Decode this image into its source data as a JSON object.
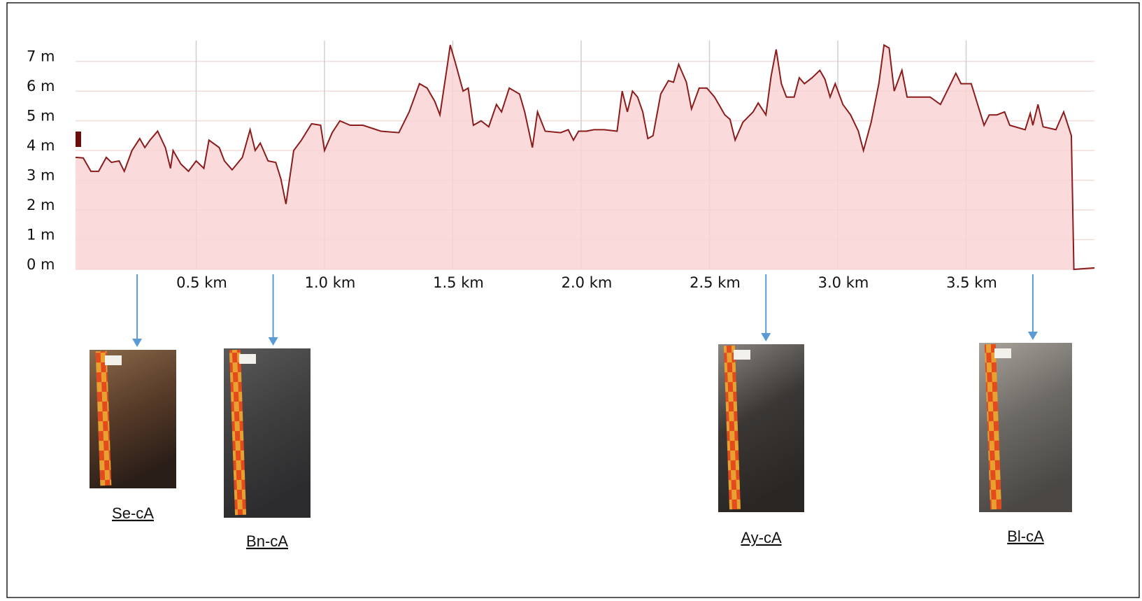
{
  "chart_data": {
    "type": "area",
    "x": [
      0.03,
      0.06,
      0.09,
      0.12,
      0.15,
      0.17,
      0.2,
      0.22,
      0.25,
      0.28,
      0.3,
      0.32,
      0.35,
      0.38,
      0.4,
      0.41,
      0.44,
      0.47,
      0.5,
      0.53,
      0.55,
      0.59,
      0.61,
      0.64,
      0.68,
      0.71,
      0.73,
      0.75,
      0.78,
      0.81,
      0.83,
      0.85,
      0.88,
      0.91,
      0.95,
      0.985,
      1.0,
      1.03,
      1.06,
      1.1,
      1.15,
      1.22,
      1.29,
      1.33,
      1.37,
      1.4,
      1.43,
      1.45,
      1.48,
      1.49,
      1.51,
      1.54,
      1.56,
      1.58,
      1.61,
      1.64,
      1.67,
      1.69,
      1.72,
      1.76,
      1.78,
      1.81,
      1.83,
      1.86,
      1.92,
      1.95,
      1.97,
      1.99,
      2.02,
      2.05,
      2.09,
      2.14,
      2.16,
      2.18,
      2.2,
      2.22,
      2.24,
      2.26,
      2.28,
      2.31,
      2.34,
      2.36,
      2.38,
      2.41,
      2.43,
      2.46,
      2.49,
      2.52,
      2.56,
      2.58,
      2.6,
      2.63,
      2.67,
      2.69,
      2.72,
      2.74,
      2.76,
      2.78,
      2.8,
      2.83,
      2.85,
      2.87,
      2.9,
      2.93,
      2.95,
      2.97,
      2.99,
      3.02,
      3.05,
      3.08,
      3.1,
      3.13,
      3.16,
      3.18,
      3.2,
      3.22,
      3.25,
      3.27,
      3.31,
      3.36,
      3.4,
      3.44,
      3.46,
      3.48,
      3.52,
      3.57,
      3.59,
      3.62,
      3.65,
      3.67,
      3.73,
      3.75,
      3.76,
      3.78,
      3.8,
      3.85,
      3.88,
      3.91,
      3.92,
      4.0
    ],
    "values": [
      3.77,
      3.75,
      3.3,
      3.3,
      3.77,
      3.6,
      3.65,
      3.3,
      4.0,
      4.4,
      4.1,
      4.35,
      4.65,
      4.1,
      3.4,
      4.0,
      3.55,
      3.3,
      3.65,
      3.4,
      4.35,
      4.1,
      3.65,
      3.35,
      3.77,
      4.7,
      4.0,
      4.25,
      3.65,
      3.6,
      3.05,
      2.2,
      4.0,
      4.35,
      4.9,
      4.85,
      4.0,
      4.6,
      5.0,
      4.85,
      4.85,
      4.65,
      4.6,
      5.3,
      6.25,
      6.1,
      5.65,
      5.2,
      6.95,
      7.55,
      6.95,
      6.0,
      6.1,
      4.85,
      5.0,
      4.8,
      5.55,
      5.3,
      6.1,
      5.9,
      5.3,
      4.1,
      5.3,
      4.65,
      4.6,
      4.7,
      4.35,
      4.65,
      4.65,
      4.7,
      4.7,
      4.65,
      6.0,
      5.3,
      6.0,
      5.8,
      5.3,
      4.4,
      4.5,
      5.9,
      6.35,
      6.3,
      6.9,
      6.3,
      5.4,
      6.1,
      6.1,
      5.8,
      5.2,
      5.05,
      4.35,
      4.95,
      5.3,
      5.6,
      5.2,
      6.5,
      7.4,
      6.25,
      5.8,
      5.8,
      6.45,
      6.25,
      6.45,
      6.7,
      6.4,
      5.8,
      6.25,
      5.55,
      5.2,
      4.65,
      4.0,
      4.95,
      6.25,
      7.55,
      7.45,
      6.0,
      6.7,
      5.8,
      5.8,
      5.8,
      5.55,
      6.25,
      6.6,
      6.25,
      6.25,
      4.85,
      5.2,
      5.2,
      5.3,
      4.85,
      4.7,
      5.25,
      4.85,
      5.55,
      4.8,
      4.7,
      5.3,
      4.5,
      0,
      0.05
    ],
    "color": "#8b1c1c",
    "fill": "#f9d4d4",
    "xlim": [
      0.03,
      4.0
    ],
    "ylim": [
      0,
      7.7
    ],
    "xticks": [
      {
        "value": 0.5,
        "label": "0.5 km"
      },
      {
        "value": 1.0,
        "label": "1.0 km"
      },
      {
        "value": 1.5,
        "label": "1.5 km"
      },
      {
        "value": 2.0,
        "label": "2.0 km"
      },
      {
        "value": 2.5,
        "label": "2.5 km"
      },
      {
        "value": 3.0,
        "label": "3.0 km"
      },
      {
        "value": 3.5,
        "label": "3.5 km"
      }
    ],
    "yticks": [
      {
        "value": 0,
        "label": "0 m"
      },
      {
        "value": 1,
        "label": "1 m"
      },
      {
        "value": 2,
        "label": "2 m"
      },
      {
        "value": 3,
        "label": "3 m"
      },
      {
        "value": 4,
        "label": "4 m"
      },
      {
        "value": 5,
        "label": "5 m"
      },
      {
        "value": 6,
        "label": "6 m"
      },
      {
        "value": 7,
        "label": "7 m"
      }
    ],
    "grid": true,
    "annotations": [
      {
        "label": "Se-cA",
        "x": 0.27
      },
      {
        "label": "Bn-cA",
        "x": 0.8
      },
      {
        "label": "Ay-cA",
        "x": 2.72
      },
      {
        "label": "Bl-cA",
        "x": 3.76
      }
    ]
  }
}
